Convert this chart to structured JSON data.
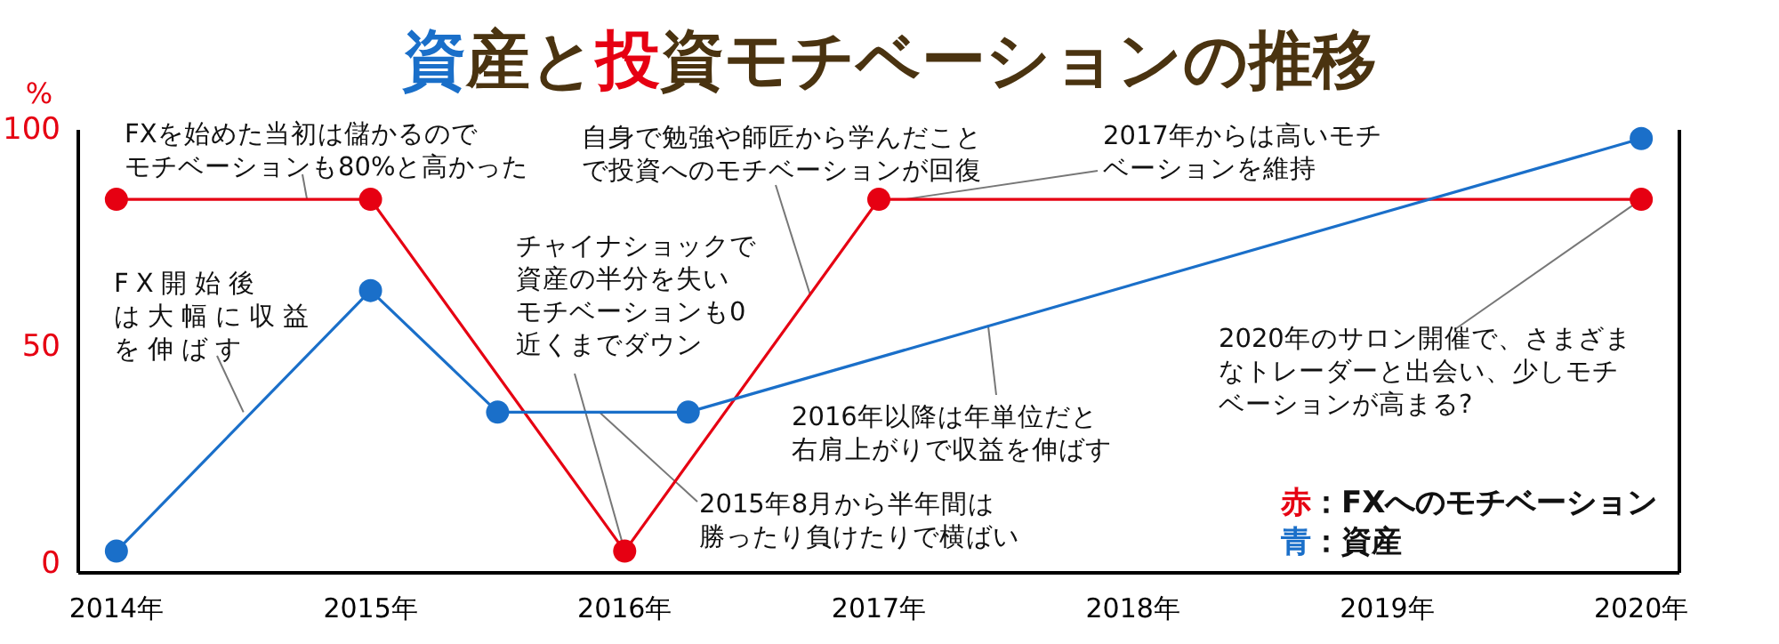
{
  "chart_data": {
    "type": "line",
    "title": "資産と投資モチベーションの推移",
    "ylabel": "%",
    "xlim": [
      2013.85,
      2020.15
    ],
    "xticks": [
      {
        "value": 2014,
        "label": "2014年"
      },
      {
        "value": 2015,
        "label": "2015年"
      },
      {
        "value": 2016,
        "label": "2016年"
      },
      {
        "value": 2017,
        "label": "2017年"
      },
      {
        "value": 2018,
        "label": "2018年"
      },
      {
        "value": 2019,
        "label": "2019年"
      },
      {
        "value": 2020,
        "label": "2020年"
      }
    ],
    "ylim": [
      -2,
      100
    ],
    "yticks": [
      0,
      50,
      100
    ],
    "marker": "circle",
    "legend": "bottom right",
    "series": [
      {
        "name": "赤：FXへのモチベーション",
        "color": "#e60012",
        "x": [
          2014,
          2015,
          2016,
          2017,
          2020
        ],
        "values": [
          84,
          84,
          3,
          84,
          84
        ]
      },
      {
        "name": "青：資産",
        "color": "#1a6fc9",
        "x": [
          2014,
          2015,
          2015.5,
          2016.25,
          2020
        ],
        "values": [
          3,
          63,
          35,
          35,
          98
        ]
      }
    ],
    "annotations": [
      {
        "text": "FXを始めた当初は儲かるのでモチベーションも80%と高かった",
        "x": 2014.75,
        "y": 84
      },
      {
        "text": "FX開始後は大幅に収益を伸ばす",
        "x": 2014.5,
        "y": 35
      },
      {
        "text": "チャイナショックで資産の半分を失いモチベーションも0近くまでダウン",
        "x": 2016,
        "y": 3
      },
      {
        "text": "2015年8月から半年間は勝ったり負けたりで横ばい",
        "x": 2015.9,
        "y": 35
      },
      {
        "text": "自身で勉強や師匠から学んだことで投資へのモチベーションが回復",
        "x": 2016.73,
        "y": 62
      },
      {
        "text": "2017年からは高いモチベーションを維持",
        "x": 2017.1,
        "y": 84
      },
      {
        "text": "2016年以降は年単位だと右肩上がりで収益を伸ばす",
        "x": 2017.43,
        "y": 55
      },
      {
        "text": "2020年のサロン開催で、さまざまなトレーダーと出会い、少しモチベーションが高まる?",
        "x": 2020,
        "y": 84
      }
    ]
  }
}
